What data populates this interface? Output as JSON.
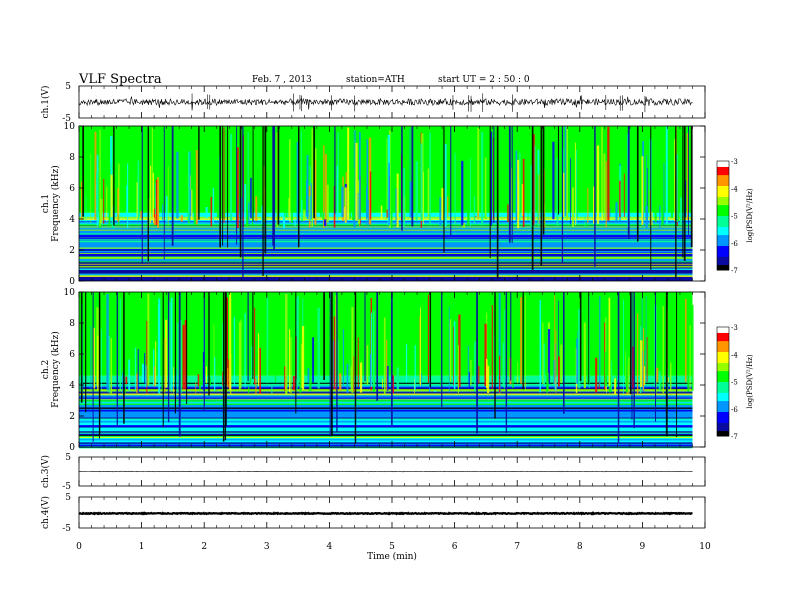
{
  "header": {
    "title": "VLF  Spectra",
    "date": "Feb. 7  , 2013",
    "station": "station=ATH",
    "start_ut": "start  UT  =   2  : 50 : 0"
  },
  "colors": {
    "colormap": [
      "#000000",
      "#0a0aa0",
      "#0000ff",
      "#0096ff",
      "#00ffff",
      "#00ff96",
      "#00ff00",
      "#96ff00",
      "#ffff00",
      "#ff9600",
      "#ff0000",
      "#ffffff"
    ],
    "trace": "#000000",
    "frame": "#000000"
  },
  "chart_data": [
    {
      "panel": "ch1-waveform",
      "type": "line",
      "ylabel": "ch.1(V)",
      "ylim": [
        -5,
        5
      ],
      "yticks": [
        "5",
        "-5"
      ],
      "xlim": [
        0,
        10
      ],
      "data_xmax": 9.8,
      "baseline": 0,
      "amplitude": 1,
      "description_note": ""
    },
    {
      "panel": "ch1-spectrogram",
      "type": "heatmap",
      "ylabel_channel": "ch.1",
      "ylabel": "Frequency  (kHz)",
      "ylim": [
        0,
        10
      ],
      "yticks": [
        "0",
        "2",
        "4",
        "6",
        "8",
        "10"
      ],
      "xlim": [
        0,
        10
      ],
      "data_xmax": 9.8,
      "colorbar": {
        "label": "log(PSD(V²/Hz)",
        "range": [
          -7,
          -3
        ],
        "ticks": [
          "-3",
          "-4",
          "-5",
          "-6",
          "-7"
        ]
      },
      "bands": [
        {
          "from_khz": 0,
          "to_khz": 1.8,
          "log_psd": -6.6
        },
        {
          "from_khz": 1.8,
          "to_khz": 3.6,
          "log_psd": -6.0
        },
        {
          "from_khz": 3.6,
          "to_khz": 4.4,
          "log_psd": -5.4
        },
        {
          "from_khz": 4.4,
          "to_khz": 10,
          "log_psd": -4.9
        }
      ]
    },
    {
      "panel": "ch2-spectrogram",
      "type": "heatmap",
      "ylabel_channel": "ch.2",
      "ylabel": "Frequency  (kHz)",
      "ylim": [
        0,
        10
      ],
      "yticks": [
        "0",
        "2",
        "4",
        "6",
        "8",
        "10"
      ],
      "xlim": [
        0,
        10
      ],
      "data_xmax": 9.8,
      "colorbar": {
        "label": "log(PSD(V²/Hz)",
        "range": [
          -7,
          -3
        ],
        "ticks": [
          "-3",
          "-4",
          "-5",
          "-6",
          "-7"
        ]
      },
      "bands": [
        {
          "from_khz": 0,
          "to_khz": 1.8,
          "log_psd": -5.4
        },
        {
          "from_khz": 1.8,
          "to_khz": 3.8,
          "log_psd": -5.9
        },
        {
          "from_khz": 3.8,
          "to_khz": 4.6,
          "log_psd": -5.3
        },
        {
          "from_khz": 4.6,
          "to_khz": 10,
          "log_psd": -4.9
        }
      ]
    },
    {
      "panel": "ch3-waveform",
      "type": "line",
      "ylabel": "ch.3(V)",
      "ylim": [
        -5,
        5
      ],
      "yticks": [
        "5",
        "-5"
      ],
      "xlim": [
        0,
        10
      ],
      "data_xmax": 9.8,
      "baseline": 0,
      "amplitude": 0.1
    },
    {
      "panel": "ch4-waveform",
      "type": "line",
      "ylabel": "ch.4(V)",
      "ylim": [
        -5,
        5
      ],
      "yticks": [
        "5",
        "-5"
      ],
      "xlim": [
        0,
        10
      ],
      "data_xmax": 9.8,
      "baseline": -0.3,
      "amplitude": 0.15
    }
  ],
  "x_axis": {
    "label": "Time  (min)",
    "ticks": [
      "0",
      "1",
      "2",
      "3",
      "4",
      "5",
      "6",
      "7",
      "8",
      "9",
      "10"
    ],
    "range": [
      0,
      10
    ]
  }
}
